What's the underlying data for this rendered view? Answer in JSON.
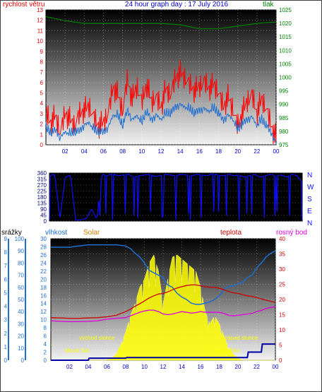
{
  "colors": {
    "wind": "#ff0000",
    "gust": "#1e6fd0",
    "pressure": "#008000",
    "direction": "#1010ff",
    "humidity": "#1e6fd0",
    "solar": "#ffff00",
    "temperature": "#cc0000",
    "dewpoint": "#dd00dd",
    "rain": "#0000a0",
    "title": "#0000c0",
    "axis_left": "#e00000",
    "axis_right": "#008000",
    "grid_gray": "#888888"
  },
  "chart_data": [
    {
      "type": "line",
      "title": "24 hour graph day : 17 July 2016",
      "ylabel_left": "rychlost větru",
      "ylabel_right": "tlak",
      "x_ticks": [
        "02",
        "04",
        "06",
        "08",
        "10",
        "12",
        "14",
        "16",
        "18",
        "20",
        "22",
        "00"
      ],
      "ylim_left": [
        0,
        13
      ],
      "ylim_right": [
        975,
        1025
      ],
      "y_ticks_left": [
        0,
        1,
        2,
        3,
        4,
        5,
        6,
        7,
        8,
        9,
        10,
        11,
        12,
        13
      ],
      "y_ticks_right": [
        975,
        980,
        985,
        990,
        995,
        1000,
        1005,
        1010,
        1015,
        1020,
        1025
      ],
      "grid": true,
      "series": [
        {
          "key": "wind_max",
          "axis": "left",
          "x": [
            0,
            0.5,
            1,
            1.5,
            2,
            2.5,
            3,
            3.5,
            4,
            4.5,
            5,
            5.5,
            6,
            6.5,
            7,
            7.5,
            8,
            8.5,
            9,
            9.5,
            10,
            10.5,
            11,
            11.5,
            12,
            12.5,
            13,
            13.5,
            14,
            14.5,
            15,
            15.5,
            16,
            16.5,
            17,
            17.5,
            18,
            18.5,
            19,
            19.5,
            20,
            20.5,
            21,
            21.5,
            22,
            22.5,
            23,
            23.5,
            24
          ],
          "values": [
            3.5,
            2.5,
            3.2,
            1.5,
            3.5,
            2.8,
            2.2,
            3.4,
            3.7,
            4.1,
            3,
            2.2,
            2.5,
            3.4,
            6,
            5.2,
            3.6,
            6.7,
            4.8,
            6,
            4.5,
            6.2,
            4.5,
            5,
            4,
            5.8,
            5.2,
            6.8,
            7.3,
            6.8,
            6.2,
            5.6,
            6,
            6.5,
            5.8,
            6.2,
            5.4,
            4,
            5,
            3.8,
            2.2,
            3.5,
            4.6,
            5.2,
            3.4,
            4.8,
            3.8,
            2.2,
            1
          ]
        },
        {
          "key": "wind_avg",
          "axis": "left",
          "x": [
            0,
            0.5,
            1,
            1.5,
            2,
            2.5,
            3,
            3.5,
            4,
            4.5,
            5,
            5.5,
            6,
            6.5,
            7,
            7.5,
            8,
            8.5,
            9,
            9.5,
            10,
            10.5,
            11,
            11.5,
            12,
            12.5,
            13,
            13.5,
            14,
            14.5,
            15,
            15.5,
            16,
            16.5,
            17,
            17.5,
            18,
            18.5,
            19,
            19.5,
            20,
            20.5,
            21,
            21.5,
            22,
            22.5,
            23,
            23.5,
            24
          ],
          "values": [
            1.8,
            1.3,
            1.6,
            0.8,
            1.4,
            1.2,
            1.4,
            1.5,
            2,
            2.3,
            1.6,
            1.4,
            1.4,
            1.8,
            3,
            3,
            2,
            3.5,
            2.5,
            3,
            2.3,
            3.4,
            2.5,
            3,
            2.6,
            3.2,
            3.2,
            3.8,
            4,
            3.8,
            3.6,
            3.2,
            3.5,
            3.6,
            3.4,
            3.7,
            3.2,
            2.5,
            3,
            2.6,
            1.6,
            2.2,
            2.6,
            2.8,
            2,
            2.6,
            2,
            1.3,
            0.3
          ]
        },
        {
          "key": "pressure",
          "axis": "right",
          "x": [
            0,
            2,
            4,
            6,
            8,
            10,
            12,
            14,
            16,
            18,
            20,
            22,
            24
          ],
          "values": [
            1022.5,
            1021,
            1020,
            1020,
            1020,
            1020,
            1020,
            1019.5,
            1018,
            1018,
            1019,
            1020,
            1020.5
          ]
        }
      ]
    },
    {
      "type": "scatter",
      "title": "",
      "y_ticks": [
        0,
        45,
        90,
        135,
        180,
        225,
        270,
        315,
        360
      ],
      "ylim": [
        0,
        360
      ],
      "right_labels": [
        "N",
        "W",
        "S",
        "E",
        "N"
      ],
      "x_ticks": [],
      "series": [
        {
          "key": "direction",
          "x": [
            0,
            0.5,
            1,
            1.5,
            2,
            2.5,
            3,
            3.5,
            4,
            4.5,
            5,
            5.5,
            6,
            6.5,
            7,
            7.5,
            8,
            8.5,
            9,
            9.5,
            10,
            10.5,
            11,
            11.5,
            12,
            12.5,
            13,
            13.5,
            14,
            14.5,
            15,
            15.5,
            16,
            16.5,
            17,
            17.5,
            18,
            18.5,
            19,
            19.5,
            20,
            20.5,
            21,
            21.5,
            22,
            22.5,
            23,
            23.5,
            24
          ],
          "values": [
            340,
            350,
            20,
            330,
            345,
            5,
            10,
            20,
            90,
            15,
            350,
            340,
            355,
            340,
            345,
            350,
            330,
            340,
            345,
            350,
            335,
            340,
            350,
            345,
            340,
            350,
            345,
            340,
            350,
            345,
            340,
            355,
            345,
            340,
            350,
            340,
            345,
            330,
            340,
            350,
            330,
            340,
            350,
            340,
            345,
            330,
            350,
            340,
            290
          ]
        }
      ]
    },
    {
      "type": "line",
      "title": "",
      "legend": [
        "srážky",
        "vlhkost",
        "Solar",
        "teplota",
        "rosný bod"
      ],
      "annotations": [
        "východ slunce",
        "západ slunce",
        "Moon Set",
        "Moon Rise"
      ],
      "x_ticks": [
        "02",
        "04",
        "06",
        "08",
        "10",
        "12",
        "14",
        "16",
        "18",
        "20",
        "22",
        "00"
      ],
      "y_ticks_rain": [
        0,
        1,
        2,
        3,
        4,
        5,
        6,
        7,
        8,
        9
      ],
      "y_ticks_humidity": [
        0,
        10,
        20,
        30,
        40,
        50,
        60,
        70,
        80,
        90,
        100
      ],
      "y_ticks_solar": [
        0,
        2,
        4,
        6,
        8,
        10,
        12,
        14,
        16,
        18,
        20,
        22,
        24,
        26,
        28,
        30
      ],
      "y_ticks_temp": [
        0,
        5,
        10,
        15,
        20,
        25,
        30,
        35,
        40
      ],
      "ylim_temp": [
        0,
        40
      ],
      "grid": true,
      "series": [
        {
          "key": "humidity",
          "axis": "humidity_0_100",
          "x": [
            0,
            1,
            2,
            3,
            4,
            5,
            6,
            7,
            8,
            8.5,
            9,
            9.5,
            10,
            10.5,
            11,
            11.5,
            12,
            12.5,
            13,
            13.5,
            14,
            14.5,
            15,
            15.5,
            16,
            16.5,
            17,
            17.5,
            18,
            18.5,
            19,
            19.5,
            20,
            20.5,
            21,
            21.5,
            22,
            22.5,
            23,
            23.5,
            24
          ],
          "values": [
            93,
            93,
            93,
            94,
            95,
            95,
            95,
            95,
            94,
            92,
            88,
            85,
            80,
            74,
            72,
            70,
            68,
            62,
            60,
            55,
            52,
            50,
            47,
            46,
            46,
            47,
            48,
            50,
            53,
            58,
            61,
            61,
            63,
            64,
            68,
            70,
            76,
            80,
            85,
            88,
            90
          ]
        },
        {
          "key": "temperature",
          "axis": "temp_0_40",
          "x": [
            0,
            1,
            2,
            3,
            4,
            5,
            6,
            7,
            8,
            8.5,
            9,
            9.5,
            10,
            10.5,
            11,
            11.5,
            12,
            12.5,
            13,
            13.5,
            14,
            14.5,
            15,
            15.5,
            16,
            16.5,
            17,
            17.5,
            18,
            18.5,
            19,
            19.5,
            20,
            20.5,
            21,
            21.5,
            22,
            22.5,
            23,
            23.5,
            24
          ],
          "values": [
            14,
            13.9,
            13.8,
            13.8,
            13.9,
            14,
            14.3,
            14.8,
            16,
            16.8,
            17.8,
            18.6,
            19.5,
            20.5,
            21.2,
            21.8,
            22,
            22.5,
            23.2,
            23.8,
            24.2,
            24.6,
            24.8,
            24.8,
            24.5,
            24.2,
            24,
            24,
            23.7,
            23.2,
            22.6,
            22.2,
            22,
            21.6,
            21.2,
            21,
            20.6,
            20.2,
            19.8,
            19.4,
            19
          ]
        },
        {
          "key": "dewpoint",
          "axis": "temp_0_40",
          "x": [
            0,
            1,
            2,
            3,
            4,
            5,
            6,
            7,
            8,
            8.5,
            9,
            9.5,
            10,
            10.5,
            11,
            11.5,
            12,
            12.5,
            13,
            13.5,
            14,
            14.5,
            15,
            15.5,
            16,
            16.5,
            17,
            17.5,
            18,
            18.5,
            19,
            19.5,
            20,
            20.5,
            21,
            21.5,
            22,
            22.5,
            23,
            23.5,
            24
          ],
          "values": [
            13,
            12.8,
            12.7,
            12.7,
            12.8,
            13,
            13.5,
            13.8,
            14,
            14.6,
            15.2,
            15.8,
            16.2,
            16.5,
            16.5,
            16,
            15.2,
            15,
            15.2,
            15.6,
            16,
            15.8,
            15.5,
            15.7,
            16,
            15.8,
            15.8,
            15.8,
            15.8,
            15.4,
            14.8,
            14.6,
            14.8,
            15,
            15.2,
            15.4,
            16,
            16.4,
            17,
            17.4,
            17.6
          ]
        },
        {
          "key": "solar",
          "axis": "solar_0_30",
          "x": [
            0,
            5.8,
            6.5,
            7,
            7.5,
            8,
            8.5,
            9,
            9.5,
            10,
            10.5,
            11,
            11.5,
            12,
            12.5,
            13,
            13.5,
            14,
            14.5,
            15,
            15.5,
            16,
            16.5,
            17,
            17.5,
            18,
            18.5,
            19,
            19.5,
            20,
            20.5,
            24
          ],
          "values": [
            0,
            0,
            0.5,
            1.5,
            4,
            7,
            11,
            14,
            18,
            20,
            24,
            26,
            22,
            14,
            20,
            25.5,
            26,
            25,
            24,
            23,
            22,
            18,
            12,
            9,
            11,
            9,
            6,
            3,
            1.5,
            0.5,
            0,
            0
          ]
        },
        {
          "key": "rain",
          "axis": "rain_0_9",
          "x": [
            0,
            4,
            4.1,
            8,
            8.1,
            12,
            21,
            21.1,
            22.5,
            22.6,
            24
          ],
          "values": [
            0,
            0,
            0.15,
            0.15,
            0.2,
            0.2,
            0.2,
            0.6,
            0.6,
            1.2,
            1.2
          ]
        }
      ]
    }
  ]
}
